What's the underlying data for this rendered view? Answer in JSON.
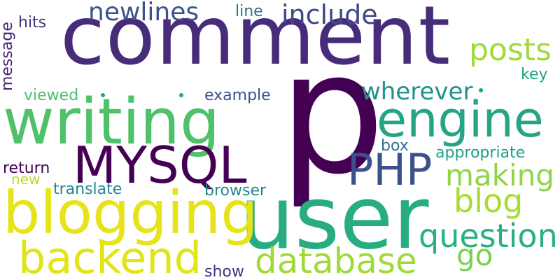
{
  "words": {
    "comment": {
      "text": "comment",
      "color": "#472c7a"
    },
    "p": {
      "text": "p",
      "color": "#440154"
    },
    "user": {
      "text": "user",
      "color": "#27ad81"
    },
    "writing": {
      "text": "writing",
      "color": "#4fc16a"
    },
    "blogging": {
      "text": "blogging",
      "color": "#e6e419"
    },
    "mysql": {
      "text": "MYSQL",
      "color": "#440154"
    },
    "engine": {
      "text": "engine",
      "color": "#25a585"
    },
    "php": {
      "text": "PHP",
      "color": "#3b518b"
    },
    "backend": {
      "text": "backend",
      "color": "#e2e418"
    },
    "database": {
      "text": "database",
      "color": "#a0da39"
    },
    "question": {
      "text": "question",
      "color": "#2ab07f"
    },
    "blog": {
      "text": "blog",
      "color": "#a8db34"
    },
    "making": {
      "text": "making",
      "color": "#8ed645"
    },
    "posts": {
      "text": "posts",
      "color": "#a0da39"
    },
    "wherever": {
      "text": "wherever",
      "color": "#21918c"
    },
    "include": {
      "text": "include",
      "color": "#3f4889"
    },
    "newlines": {
      "text": "newlines",
      "color": "#3b528b"
    },
    "go": {
      "text": "go",
      "color": "#7ad151"
    },
    "hits": {
      "text": "hits",
      "color": "#46327e"
    },
    "line": {
      "text": "line",
      "color": "#2c728e"
    },
    "message": {
      "text": "message",
      "color": "#482173"
    },
    "key": {
      "text": "key",
      "color": "#21a585"
    },
    "viewed": {
      "text": "viewed",
      "color": "#4ac16d"
    },
    "example": {
      "text": "example",
      "color": "#3b518b"
    },
    "box": {
      "text": "box",
      "color": "#2c728e"
    },
    "appropriate": {
      "text": "appropriate",
      "color": "#1fa088"
    },
    "return": {
      "text": "return",
      "color": "#440154"
    },
    "new": {
      "text": "new",
      "color": "#b5de2b"
    },
    "translate": {
      "text": "translate",
      "color": "#25858e"
    },
    "browser": {
      "text": "browser",
      "color": "#25858e"
    },
    "show": {
      "text": "show",
      "color": "#46327e"
    }
  },
  "dots": {
    "dot1": {
      "color": "#22a884"
    },
    "dot2": {
      "color": "#22a884"
    },
    "dot3": {
      "color": "#20a386"
    }
  }
}
